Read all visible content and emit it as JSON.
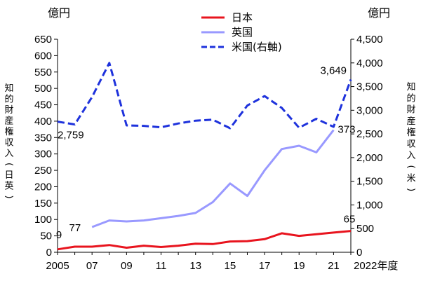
{
  "chart_data": {
    "type": "line",
    "left_unit": "億円",
    "right_unit": "億円",
    "ylabel_left": "知的財産権収入(日英)",
    "ylabel_right": "知的財産権収入(米)",
    "xlabel_suffix": "年度",
    "x": [
      2005,
      2006,
      2007,
      2008,
      2009,
      2010,
      2011,
      2012,
      2013,
      2014,
      2015,
      2016,
      2017,
      2018,
      2019,
      2020,
      2021,
      2022
    ],
    "x_tick_labels": [
      {
        "x": 2005,
        "label": "2005"
      },
      {
        "x": 2007,
        "label": "07"
      },
      {
        "x": 2009,
        "label": "09"
      },
      {
        "x": 2011,
        "label": "11"
      },
      {
        "x": 2013,
        "label": "13"
      },
      {
        "x": 2015,
        "label": "15"
      },
      {
        "x": 2017,
        "label": "17"
      },
      {
        "x": 2019,
        "label": "19"
      },
      {
        "x": 2021,
        "label": "21"
      },
      {
        "x": 2022,
        "label": "2022年度"
      }
    ],
    "ylim_left": [
      0,
      650
    ],
    "yticks_left": [
      0,
      50,
      100,
      150,
      200,
      250,
      300,
      350,
      400,
      450,
      500,
      550,
      600,
      650
    ],
    "ylim_right": [
      0,
      4500
    ],
    "yticks_right": [
      {
        "value": 0,
        "label": "0"
      },
      {
        "value": 500,
        "label": "500"
      },
      {
        "value": 1000,
        "label": "1,000"
      },
      {
        "value": 1500,
        "label": "1,500"
      },
      {
        "value": 2000,
        "label": "2,000"
      },
      {
        "value": 2500,
        "label": "2,500"
      },
      {
        "value": 3000,
        "label": "3,000"
      },
      {
        "value": 3500,
        "label": "3,500"
      },
      {
        "value": 4000,
        "label": "4,000"
      },
      {
        "value": 4500,
        "label": "4,500"
      }
    ],
    "series": [
      {
        "name": "日本",
        "axis": "left",
        "color": "#e8141e",
        "style": "solid",
        "values": [
          9,
          17,
          17,
          22,
          14,
          20,
          16,
          20,
          26,
          25,
          33,
          34,
          40,
          58,
          50,
          55,
          60,
          65
        ]
      },
      {
        "name": "英国",
        "axis": "left",
        "color": "#9999ff",
        "style": "solid",
        "values": [
          null,
          null,
          77,
          97,
          94,
          97,
          104,
          111,
          120,
          153,
          210,
          172,
          250,
          315,
          325,
          305,
          373,
          null
        ]
      },
      {
        "name": "米国(右軸)",
        "axis": "right",
        "color": "#1e32dc",
        "style": "dashed",
        "values": [
          2759,
          2700,
          3280,
          4000,
          2680,
          2670,
          2640,
          2720,
          2780,
          2800,
          2620,
          3100,
          3300,
          3050,
          2630,
          2820,
          2650,
          3649
        ]
      }
    ],
    "data_labels": [
      {
        "series": "日本",
        "x": 2005,
        "text": "9"
      },
      {
        "series": "日本",
        "x": 2022,
        "text": "65"
      },
      {
        "series": "英国",
        "x": 2007,
        "text": "77"
      },
      {
        "series": "英国",
        "x": 2021,
        "text": "373"
      },
      {
        "series": "米国(右軸)",
        "x": 2005,
        "text": "2,759"
      },
      {
        "series": "米国(右軸)",
        "x": 2022,
        "text": "3,649"
      }
    ],
    "legend": "top-center",
    "grid": false
  }
}
